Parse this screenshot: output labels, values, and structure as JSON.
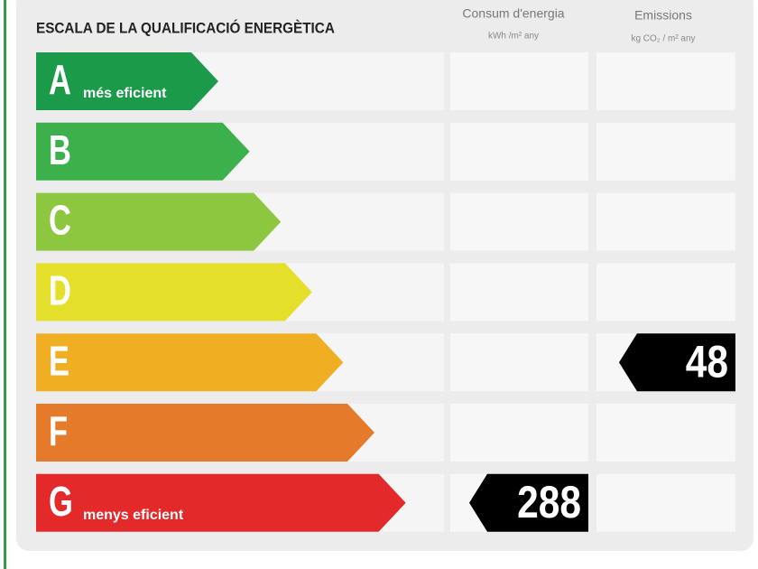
{
  "header": {
    "title": "ESCALA DE LA QUALIFICACIÓ ENERGÈTICA",
    "columns": [
      {
        "title": "Consum d'energia",
        "unit": "kWh /m² any"
      },
      {
        "title": "Emissions",
        "unit": "kg CO₂ / m² any"
      }
    ]
  },
  "rows": [
    {
      "letter": "A",
      "label": "més eficient"
    },
    {
      "letter": "B"
    },
    {
      "letter": "C"
    },
    {
      "letter": "D"
    },
    {
      "letter": "E",
      "emissions": 48
    },
    {
      "letter": "F"
    },
    {
      "letter": "G",
      "label": "menys eficient",
      "consumption": 288
    }
  ]
}
